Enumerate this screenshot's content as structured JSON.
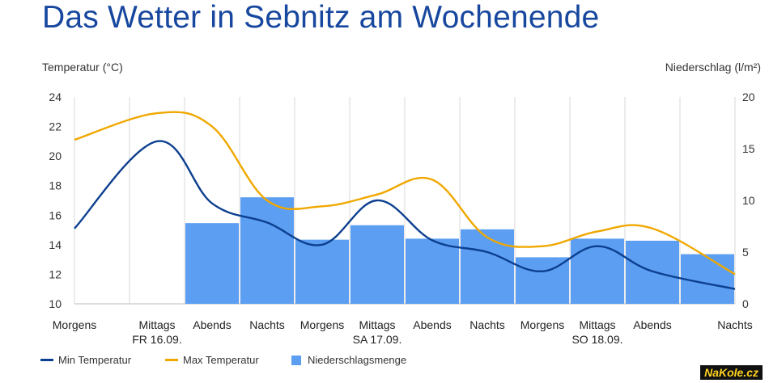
{
  "title": "Das Wetter in Sebnitz am Wochenende",
  "watermark": "NaKole.cz",
  "colors": {
    "min": "#0d3f8f",
    "max": "#f0a800",
    "precip": "#5b9ef2",
    "grid": "#d9d9d9",
    "title": "#17479e"
  },
  "chart_data": {
    "type": "bar+line",
    "y_left_label": "Temperatur (°C)",
    "y_right_label": "Niederschlag (l/m²)",
    "y_left_range": [
      10,
      24
    ],
    "y_left_ticks": [
      10,
      12,
      14,
      16,
      18,
      20,
      22,
      24
    ],
    "y_right_range": [
      0,
      20
    ],
    "y_right_ticks": [
      0,
      5,
      10,
      15,
      20
    ],
    "categories": [
      "Morgens",
      "Mittags",
      "Abends",
      "Nachts",
      "Morgens",
      "Mittags",
      "Abends",
      "Nachts",
      "Morgens",
      "Mittags",
      "Abends",
      "Nachts"
    ],
    "day_labels": [
      {
        "at_index": 1,
        "label": "FR 16.09."
      },
      {
        "at_index": 5,
        "label": "SA 17.09."
      },
      {
        "at_index": 9,
        "label": "SO 18.09."
      }
    ],
    "series": [
      {
        "name": "Min Temperatur",
        "type": "line",
        "axis": "left",
        "values": [
          15.1,
          21.0,
          16.8,
          15.5,
          14.0,
          17.0,
          14.3,
          13.5,
          12.2,
          13.9,
          12.2,
          11.0
        ]
      },
      {
        "name": "Max Temperatur",
        "type": "line",
        "axis": "left",
        "values": [
          21.1,
          22.9,
          22.0,
          17.0,
          16.6,
          17.4,
          18.4,
          14.5,
          13.9,
          14.9,
          15.1,
          12.0
        ]
      },
      {
        "name": "Niederschlagsmenge",
        "type": "bar",
        "axis": "right",
        "values": [
          0,
          0,
          7.8,
          10.3,
          6.2,
          7.6,
          6.3,
          7.2,
          4.5,
          6.3,
          6.1,
          4.8
        ]
      }
    ],
    "legend_position": "bottom-left",
    "grid": "vertical"
  }
}
